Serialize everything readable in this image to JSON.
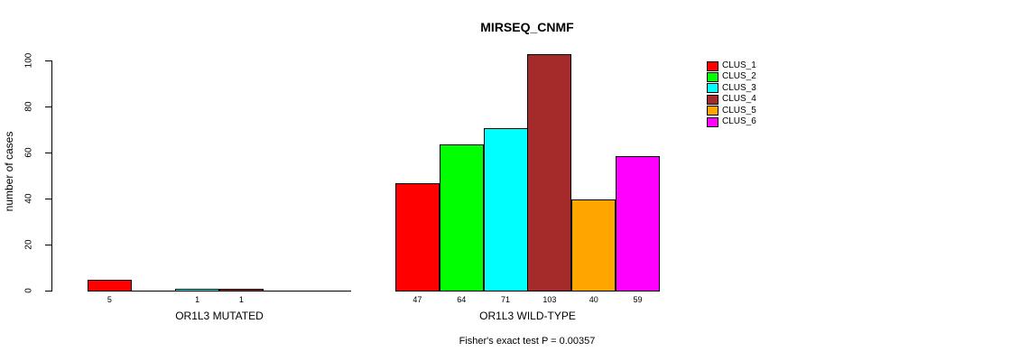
{
  "chart_data": {
    "type": "bar",
    "title": "MIRSEQ_CNMF",
    "ylabel": "number of cases",
    "xlabel": "",
    "ylim": [
      0,
      100
    ],
    "yticks": [
      0,
      20,
      40,
      60,
      80,
      100
    ],
    "grid": false,
    "legend_position": "right",
    "legend": [
      {
        "name": "CLUS_1",
        "color": "#ff0000"
      },
      {
        "name": "CLUS_2",
        "color": "#00ff00"
      },
      {
        "name": "CLUS_3",
        "color": "#00ffff"
      },
      {
        "name": "CLUS_4",
        "color": "#a52a2a"
      },
      {
        "name": "CLUS_5",
        "color": "#ffa500"
      },
      {
        "name": "CLUS_6",
        "color": "#ff00ff"
      }
    ],
    "groups": [
      {
        "label": "OR1L3 MUTATED",
        "series": [
          "CLUS_1",
          "CLUS_2",
          "CLUS_3",
          "CLUS_4",
          "CLUS_5",
          "CLUS_6"
        ],
        "values": [
          5,
          0,
          1,
          1,
          0,
          0
        ],
        "bar_labels": [
          "5",
          "",
          "1",
          "1",
          "",
          ""
        ]
      },
      {
        "label": "OR1L3 WILD-TYPE",
        "series": [
          "CLUS_1",
          "CLUS_2",
          "CLUS_3",
          "CLUS_4",
          "CLUS_5",
          "CLUS_6"
        ],
        "values": [
          47,
          64,
          71,
          103,
          40,
          59
        ],
        "bar_labels": [
          "47",
          "64",
          "71",
          "103",
          "40",
          "59"
        ]
      }
    ],
    "annotation": "Fisher's exact test P = 0.00357"
  }
}
